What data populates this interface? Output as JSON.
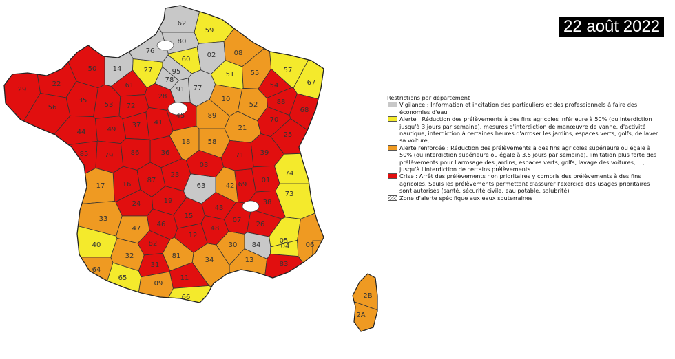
{
  "date_label": "22 août 2022",
  "colors": {
    "vigilance": "#c8c8c8",
    "alerte": "#f4ea2c",
    "alerte_renforcee": "#ef9a22",
    "crise": "#e10f0f",
    "none": "#ffffff",
    "border": "#333333"
  },
  "legend": {
    "title": "Restrictions par département",
    "items": [
      {
        "key": "vigilance",
        "text": "Vigilance : Information et incitation des particuliers et des professionnels à faire des économies d'eau"
      },
      {
        "key": "alerte",
        "text": "Alerte : Réduction des prélèvements à des fins agricoles inférieure à 50% (ou interdiction jusqu'à 3 jours par semaine), mesures d'interdiction de manœuvre de vanne, d'activité nautique, interdiction à certaines heures d'arroser les jardins, espaces verts, golfs, de laver sa voiture, ..."
      },
      {
        "key": "alerte_renforcee",
        "text": "Alerte renforcée : Réduction des prélèvements à des fins agricoles supérieure ou égale à 50% (ou interdiction supérieure ou égale à 3,5 jours par semaine), limitation plus forte des prélèvements pour l'arrosage des jardins, espaces verts, golfs, lavage des voitures, ..., jusqu'à l'interdiction de certains prélèvements"
      },
      {
        "key": "crise",
        "text": "Crise : Arrêt des prélèvements non prioritaires y compris des prélèvements à des fins agricoles. Seuls les prélèvements permettant d'assurer l'exercice des usages prioritaires sont autorisés (santé, sécurité civile, eau potable, salubrité)"
      },
      {
        "key": "groundwater",
        "text": "Zone d'alerte spécifique aux eaux souterraines"
      }
    ]
  },
  "departments": [
    {
      "code": "62",
      "level": "vigilance"
    },
    {
      "code": "59",
      "level": "alerte"
    },
    {
      "code": "80",
      "level": "vigilance"
    },
    {
      "code": "02",
      "level": "vigilance"
    },
    {
      "code": "08",
      "level": "alerte_renforcee"
    },
    {
      "code": "76",
      "level": "vigilance"
    },
    {
      "code": "60",
      "level": "alerte"
    },
    {
      "code": "14",
      "level": "vigilance"
    },
    {
      "code": "27",
      "level": "alerte"
    },
    {
      "code": "95",
      "level": "vigilance"
    },
    {
      "code": "51",
      "level": "alerte"
    },
    {
      "code": "55",
      "level": "alerte_renforcee"
    },
    {
      "code": "57",
      "level": "alerte"
    },
    {
      "code": "67",
      "level": "alerte"
    },
    {
      "code": "54",
      "level": "crise"
    },
    {
      "code": "50",
      "level": "crise"
    },
    {
      "code": "61",
      "level": "crise"
    },
    {
      "code": "78",
      "level": "vigilance"
    },
    {
      "code": "91",
      "level": "vigilance"
    },
    {
      "code": "77",
      "level": "vigilance"
    },
    {
      "code": "10",
      "level": "alerte_renforcee"
    },
    {
      "code": "52",
      "level": "alerte_renforcee"
    },
    {
      "code": "88",
      "level": "crise"
    },
    {
      "code": "68",
      "level": "crise"
    },
    {
      "code": "29",
      "level": "crise"
    },
    {
      "code": "22",
      "level": "crise"
    },
    {
      "code": "56",
      "level": "crise"
    },
    {
      "code": "35",
      "level": "crise"
    },
    {
      "code": "53",
      "level": "crise"
    },
    {
      "code": "72",
      "level": "crise"
    },
    {
      "code": "28",
      "level": "crise"
    },
    {
      "code": "45",
      "level": "crise"
    },
    {
      "code": "89",
      "level": "alerte_renforcee"
    },
    {
      "code": "21",
      "level": "alerte_renforcee"
    },
    {
      "code": "70",
      "level": "crise"
    },
    {
      "code": "44",
      "level": "crise"
    },
    {
      "code": "49",
      "level": "crise"
    },
    {
      "code": "37",
      "level": "crise"
    },
    {
      "code": "41",
      "level": "crise"
    },
    {
      "code": "18",
      "level": "alerte_renforcee"
    },
    {
      "code": "58",
      "level": "alerte_renforcee"
    },
    {
      "code": "71",
      "level": "crise"
    },
    {
      "code": "39",
      "level": "crise"
    },
    {
      "code": "25",
      "level": "crise"
    },
    {
      "code": "85",
      "level": "crise"
    },
    {
      "code": "79",
      "level": "crise"
    },
    {
      "code": "86",
      "level": "crise"
    },
    {
      "code": "36",
      "level": "crise"
    },
    {
      "code": "03",
      "level": "crise"
    },
    {
      "code": "01",
      "level": "crise"
    },
    {
      "code": "74",
      "level": "alerte"
    },
    {
      "code": "17",
      "level": "alerte_renforcee"
    },
    {
      "code": "16",
      "level": "crise"
    },
    {
      "code": "87",
      "level": "crise"
    },
    {
      "code": "23",
      "level": "crise"
    },
    {
      "code": "63",
      "level": "vigilance"
    },
    {
      "code": "42",
      "level": "alerte_renforcee"
    },
    {
      "code": "69",
      "level": "crise"
    },
    {
      "code": "38",
      "level": "crise"
    },
    {
      "code": "73",
      "level": "alerte"
    },
    {
      "code": "24",
      "level": "crise"
    },
    {
      "code": "19",
      "level": "crise"
    },
    {
      "code": "15",
      "level": "crise"
    },
    {
      "code": "43",
      "level": "crise"
    },
    {
      "code": "07",
      "level": "crise"
    },
    {
      "code": "26",
      "level": "crise"
    },
    {
      "code": "05",
      "level": "alerte"
    },
    {
      "code": "33",
      "level": "alerte_renforcee"
    },
    {
      "code": "47",
      "level": "alerte_renforcee"
    },
    {
      "code": "46",
      "level": "crise"
    },
    {
      "code": "12",
      "level": "crise"
    },
    {
      "code": "48",
      "level": "crise"
    },
    {
      "code": "30",
      "level": "alerte_renforcee"
    },
    {
      "code": "84",
      "level": "vigilance"
    },
    {
      "code": "04",
      "level": "alerte"
    },
    {
      "code": "06",
      "level": "alerte_renforcee"
    },
    {
      "code": "40",
      "level": "alerte"
    },
    {
      "code": "32",
      "level": "alerte_renforcee"
    },
    {
      "code": "82",
      "level": "crise"
    },
    {
      "code": "81",
      "level": "alerte_renforcee"
    },
    {
      "code": "34",
      "level": "alerte_renforcee"
    },
    {
      "code": "13",
      "level": "alerte_renforcee"
    },
    {
      "code": "83",
      "level": "crise"
    },
    {
      "code": "64",
      "level": "alerte_renforcee"
    },
    {
      "code": "65",
      "level": "alerte"
    },
    {
      "code": "31",
      "level": "crise"
    },
    {
      "code": "11",
      "level": "crise"
    },
    {
      "code": "09",
      "level": "alerte_renforcee"
    },
    {
      "code": "66",
      "level": "alerte"
    },
    {
      "code": "2B",
      "level": "alerte_renforcee"
    },
    {
      "code": "2A",
      "level": "alerte_renforcee"
    }
  ]
}
